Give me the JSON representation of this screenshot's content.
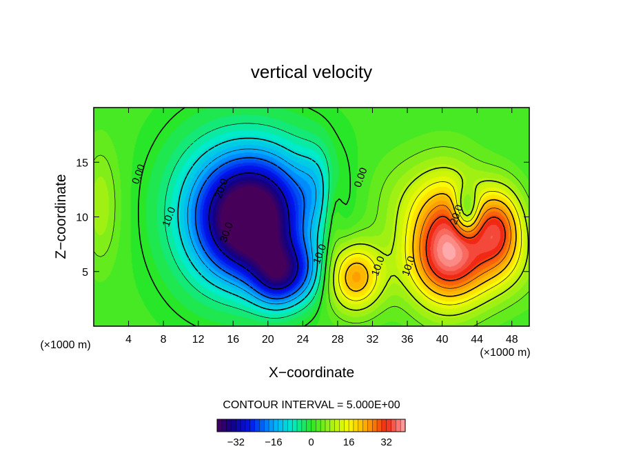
{
  "chart_data": {
    "type": "heatmap",
    "title": "vertical velocity",
    "xlabel": "X−coordinate",
    "ylabel": "Z−coordinate",
    "x_unit_label": "(×1000 m)",
    "z_unit_label": "(×1000 m)",
    "xlim": [
      0,
      50
    ],
    "ylim": [
      0,
      20
    ],
    "x_ticks": [
      4,
      8,
      12,
      16,
      20,
      24,
      28,
      32,
      36,
      40,
      44,
      48
    ],
    "x_tick_labels": [
      "4",
      "8",
      "12",
      "16",
      "20",
      "24",
      "28",
      "32",
      "36",
      "40",
      "44",
      "48"
    ],
    "y_ticks": [
      5,
      10,
      15
    ],
    "y_tick_labels": [
      "5",
      "10",
      "15"
    ],
    "contour_interval_text": "CONTOUR INTERVAL = 5.000E+00",
    "colorbar": {
      "range": [
        -40,
        40
      ],
      "ticks": [
        -32,
        -16,
        0,
        16,
        32
      ],
      "tick_labels": [
        "−32",
        "−16",
        "0",
        "16",
        "32"
      ]
    },
    "contour_labels": [
      {
        "text": "0.00",
        "x": 5.5,
        "z": 13.8
      },
      {
        "text": "10.0",
        "x": 9.0,
        "z": 9.9
      },
      {
        "text": "20.0",
        "x": 15.0,
        "z": 12.5
      },
      {
        "text": "30.0",
        "x": 15.6,
        "z": 8.5
      },
      {
        "text": "0.00",
        "x": 31.0,
        "z": 13.5
      },
      {
        "text": "10.0",
        "x": 26.3,
        "z": 6.5
      },
      {
        "text": "10.0",
        "x": 33.0,
        "z": 5.4
      },
      {
        "text": "10.0",
        "x": 36.5,
        "z": 5.4
      },
      {
        "text": "20.0",
        "x": 42.0,
        "z": 10.1
      }
    ],
    "field_features": [
      {
        "x": 0.8,
        "z": 11.0,
        "amp": 7,
        "sx": 1.5,
        "sz": 4.0
      },
      {
        "x": 18.0,
        "z": 9.0,
        "amp": -35,
        "sx": 3.8,
        "sz": 3.6
      },
      {
        "x": 21.0,
        "z": 4.5,
        "amp": -22,
        "sx": 2.0,
        "sz": 2.0
      },
      {
        "x": 19.0,
        "z": 12.0,
        "amp": -18,
        "sx": 5.0,
        "sz": 4.0
      },
      {
        "x": 24.0,
        "z": 5.0,
        "amp": -12,
        "sx": 2.0,
        "sz": 2.0
      },
      {
        "x": 13.0,
        "z": 10.0,
        "amp": -8,
        "sx": 4.0,
        "sz": 5.0
      },
      {
        "x": 27.5,
        "z": 10.5,
        "amp": 5,
        "sx": 0.8,
        "sz": 3.0
      },
      {
        "x": 25.5,
        "z": 13.0,
        "amp": -6,
        "sx": 1.5,
        "sz": 2.5
      },
      {
        "x": 30.0,
        "z": 4.5,
        "amp": 22,
        "sx": 2.2,
        "sz": 2.2
      },
      {
        "x": 40.5,
        "z": 8.0,
        "amp": 30,
        "sx": 3.0,
        "sz": 4.0
      },
      {
        "x": 46.5,
        "z": 9.0,
        "amp": 24,
        "sx": 2.0,
        "sz": 2.6
      },
      {
        "x": 43.0,
        "z": 5.5,
        "amp": 12,
        "sx": 5.0,
        "sz": 2.5
      },
      {
        "x": 42.8,
        "z": 10.5,
        "amp": -18,
        "sx": 1.0,
        "sz": 1.5
      },
      {
        "x": 35.0,
        "z": 11.5,
        "amp": 4,
        "sx": 3.0,
        "sz": 3.0
      }
    ]
  }
}
